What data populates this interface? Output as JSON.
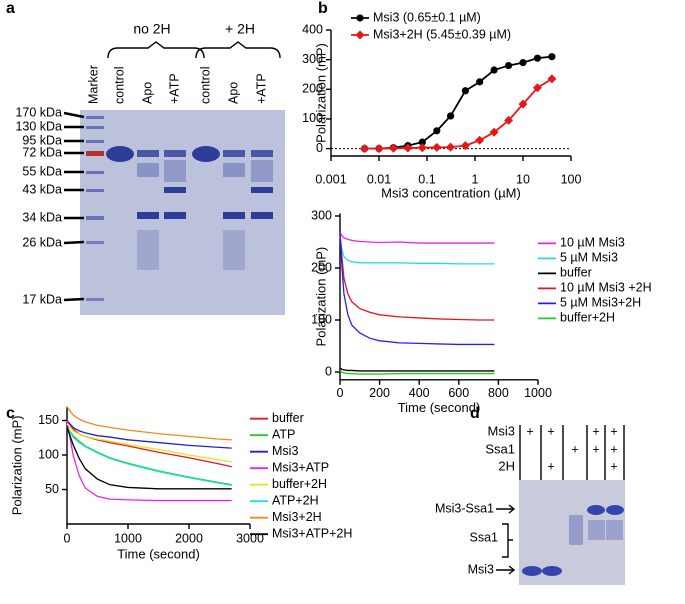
{
  "panel_labels": [
    "a",
    "b",
    "c",
    "d"
  ],
  "gel_a": {
    "group_labels": [
      "no 2H",
      "+ 2H"
    ],
    "lane_labels": [
      "Marker",
      "control",
      "Apo",
      "+ATP",
      "control",
      "Apo",
      "+ATP"
    ],
    "size_markers": [
      "170 kDa",
      "130 kDa",
      "95 kDa",
      "72 kDa",
      "55 kDa",
      "43 kDa",
      "34 kDa",
      "26 kDa",
      "17 kDa"
    ]
  },
  "gel_d": {
    "row_labels": [
      "Msi3",
      "Ssa1",
      "2H"
    ],
    "signs": [
      [
        "+",
        "+",
        null,
        "+",
        "+"
      ],
      [
        null,
        null,
        "+",
        "+",
        "+"
      ],
      [
        null,
        "+",
        null,
        null,
        "+"
      ]
    ],
    "band_labels": [
      "Msi3-Ssa1",
      "Ssa1",
      "Msi3"
    ]
  },
  "chart_data": [
    {
      "type": "scatter",
      "xlabel": "Msi3 concentration (µM)",
      "ylabel": "Polarization (mP)",
      "x_scale": "log",
      "xlim": [
        0.001,
        100
      ],
      "xticks": [
        0.001,
        0.01,
        0.1,
        1,
        10,
        100
      ],
      "ylim": [
        -25,
        400
      ],
      "yticks": [
        0,
        100,
        200,
        300,
        400
      ],
      "reference_line": 0,
      "legend": "upper left",
      "x": [
        0.005,
        0.01,
        0.02,
        0.04,
        0.08,
        0.16,
        0.31,
        0.63,
        1.25,
        2.5,
        5,
        10,
        20,
        40
      ],
      "series": [
        {
          "name": "Msi3 (0.65±0.1 µM)",
          "color": "#000000",
          "marker": "circle",
          "values": [
            0,
            0,
            3,
            10,
            22,
            60,
            110,
            195,
            225,
            265,
            280,
            290,
            305,
            310
          ]
        },
        {
          "name": "Msi3+2H (5.45±0.39 µM)",
          "color": "#e8161b",
          "marker": "diamond",
          "values": [
            0,
            0,
            1,
            2,
            3,
            4,
            5,
            10,
            28,
            55,
            95,
            150,
            205,
            235
          ]
        }
      ]
    },
    {
      "type": "line",
      "xlabel": "Time (second)",
      "ylabel": "Polarization (mP)",
      "xlim": [
        0,
        1000
      ],
      "xticks": [
        0,
        200,
        400,
        600,
        800,
        1000
      ],
      "ylim": [
        -15,
        305
      ],
      "yticks": [
        0,
        100,
        200,
        300
      ],
      "legend": "right",
      "x": [
        0,
        10,
        20,
        40,
        60,
        100,
        150,
        200,
        300,
        400,
        500,
        600,
        700,
        780
      ],
      "series": [
        {
          "name": "10 µM Msi3",
          "color": "#ee22ee",
          "values": [
            268,
            262,
            258,
            255,
            253,
            251,
            250,
            249,
            250,
            248,
            248,
            248,
            248,
            248
          ]
        },
        {
          "name": "5 µM Msi3",
          "color": "#22dddd",
          "values": [
            260,
            235,
            222,
            215,
            212,
            210,
            210,
            210,
            210,
            209,
            209,
            208,
            208,
            208
          ]
        },
        {
          "name": "buffer",
          "color": "#000000",
          "values": [
            8,
            5,
            4,
            3,
            3,
            2,
            2,
            2,
            2,
            2,
            2,
            2,
            2,
            2
          ]
        },
        {
          "name": "10 µM Msi3 +2H",
          "color": "#e8161b",
          "values": [
            265,
            220,
            180,
            150,
            135,
            122,
            115,
            110,
            106,
            104,
            102,
            101,
            100,
            100
          ]
        },
        {
          "name": "5 µM Msi3+2H",
          "color": "#2222ee",
          "values": [
            270,
            200,
            150,
            110,
            90,
            75,
            65,
            60,
            56,
            55,
            54,
            53,
            53,
            53
          ]
        },
        {
          "name": "buffer+2H",
          "color": "#22cc22",
          "values": [
            2,
            0,
            -2,
            -3,
            -3,
            -4,
            -4,
            -4,
            -3,
            -3,
            -3,
            -3,
            -3,
            -3
          ]
        }
      ]
    },
    {
      "type": "line",
      "xlabel": "Time (second)",
      "ylabel": "Polarization (mP)",
      "xlim": [
        0,
        3000
      ],
      "xticks": [
        0,
        1000,
        2000,
        3000
      ],
      "ylim": [
        0,
        170
      ],
      "yticks": [
        50,
        100,
        150
      ],
      "legend": "right",
      "x": [
        0,
        100,
        200,
        300,
        500,
        700,
        1000,
        1500,
        2000,
        2500,
        2700
      ],
      "series": [
        {
          "name": "buffer",
          "color": "#e8161b",
          "values": [
            150,
            138,
            130,
            127,
            122,
            118,
            113,
            104,
            96,
            87,
            83
          ]
        },
        {
          "name": "ATP",
          "color": "#22cc22",
          "values": [
            140,
            128,
            120,
            113,
            104,
            96,
            88,
            77,
            68,
            60,
            57
          ]
        },
        {
          "name": "Msi3",
          "color": "#2222cc",
          "values": [
            150,
            140,
            135,
            132,
            128,
            126,
            122,
            118,
            114,
            111,
            110
          ]
        },
        {
          "name": "Msi3+ATP",
          "color": "#ee22ee",
          "values": [
            150,
            100,
            70,
            52,
            40,
            36,
            35,
            34,
            34,
            34,
            34
          ]
        },
        {
          "name": "buffer+2H",
          "color": "#e8e020",
          "values": [
            145,
            135,
            130,
            127,
            123,
            120,
            115,
            108,
            100,
            93,
            90
          ]
        },
        {
          "name": "ATP+2H",
          "color": "#22dddd",
          "values": [
            140,
            126,
            118,
            112,
            103,
            95,
            87,
            76,
            67,
            59,
            56
          ]
        },
        {
          "name": "Msi3+2H",
          "color": "#f08a1c",
          "values": [
            170,
            158,
            152,
            148,
            143,
            140,
            136,
            131,
            127,
            123,
            122
          ]
        },
        {
          "name": "Msi3+ATP+2H",
          "color": "#000000",
          "values": [
            140,
            115,
            95,
            80,
            65,
            57,
            53,
            51,
            51,
            51,
            51
          ]
        }
      ]
    }
  ]
}
